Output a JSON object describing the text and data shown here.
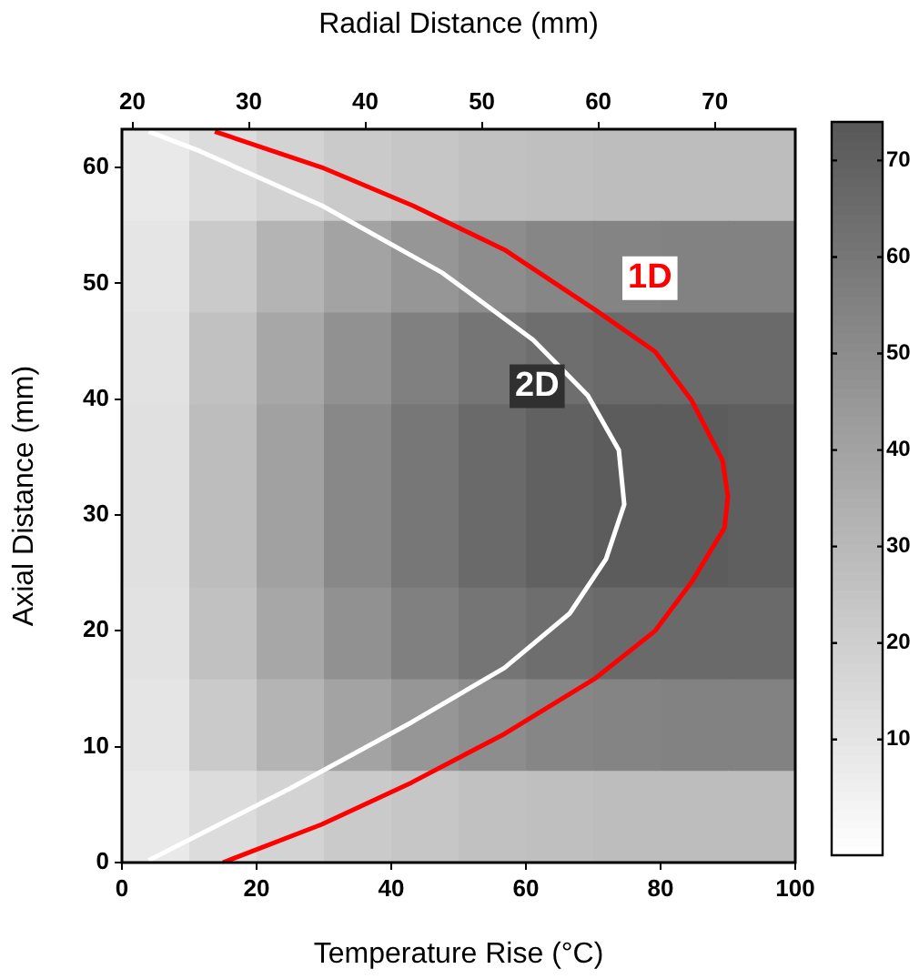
{
  "chart_data": {
    "type": "heatmap",
    "xlabel": "Temperature Rise (°C)",
    "ylabel": "Axial Distance (mm)",
    "x2label": "Radial Distance (mm)",
    "xlim": [
      0,
      100
    ],
    "xticks": [
      0,
      20,
      40,
      60,
      80,
      100
    ],
    "ylim": [
      0,
      63.3
    ],
    "yticks": [
      0,
      10,
      20,
      30,
      40,
      50,
      60
    ],
    "x2lim": [
      19.1,
      76.9
    ],
    "x2ticks": [
      20,
      30,
      40,
      50,
      60,
      70
    ],
    "cells": [
      [
        8,
        14,
        18,
        22,
        24,
        26,
        27,
        28,
        28,
        28
      ],
      [
        10,
        22,
        32,
        40,
        46,
        50,
        53,
        54,
        55,
        55
      ],
      [
        11,
        26,
        38,
        48,
        56,
        61,
        64,
        66,
        66,
        66
      ],
      [
        12,
        28,
        41,
        52,
        60,
        66,
        70,
        72,
        72,
        71
      ],
      [
        12,
        28,
        41,
        52,
        60,
        66,
        70,
        72,
        72,
        71
      ],
      [
        11,
        26,
        38,
        48,
        56,
        61,
        64,
        66,
        66,
        66
      ],
      [
        10,
        22,
        32,
        40,
        46,
        50,
        53,
        54,
        55,
        55
      ],
      [
        8,
        14,
        18,
        22,
        24,
        26,
        27,
        28,
        28,
        28
      ]
    ],
    "clim": [
      -2,
      74
    ],
    "cticks": [
      10,
      20,
      30,
      40,
      50,
      60,
      70
    ],
    "series": [
      {
        "name": "1D",
        "type": "line",
        "color": "#ff0000",
        "x": [
          15,
          29.7,
          43,
          56.8,
          70.3,
          79.2,
          84.6,
          89.5,
          90,
          89.2,
          84.6,
          79.2,
          70.3,
          56.8,
          43.2,
          29.7,
          13.8
        ],
        "values": [
          0,
          3.3,
          6.9,
          11.1,
          15.9,
          20,
          24.2,
          28.9,
          31.6,
          34.7,
          39.9,
          44.1,
          47.7,
          52.9,
          56.7,
          60,
          63.1
        ]
      },
      {
        "name": "2D",
        "type": "line",
        "color": "#ffffff",
        "x": [
          4,
          25,
          43,
          56.8,
          66.5,
          71.9,
          74.6,
          73.8,
          69.2,
          61.1,
          47.6,
          29.7,
          11.6,
          4
        ],
        "values": [
          0.2,
          6.4,
          12.1,
          16.8,
          21.5,
          26.2,
          30.9,
          35.6,
          40.3,
          45.1,
          50.9,
          56.7,
          61.4,
          63.1
        ]
      }
    ]
  }
}
